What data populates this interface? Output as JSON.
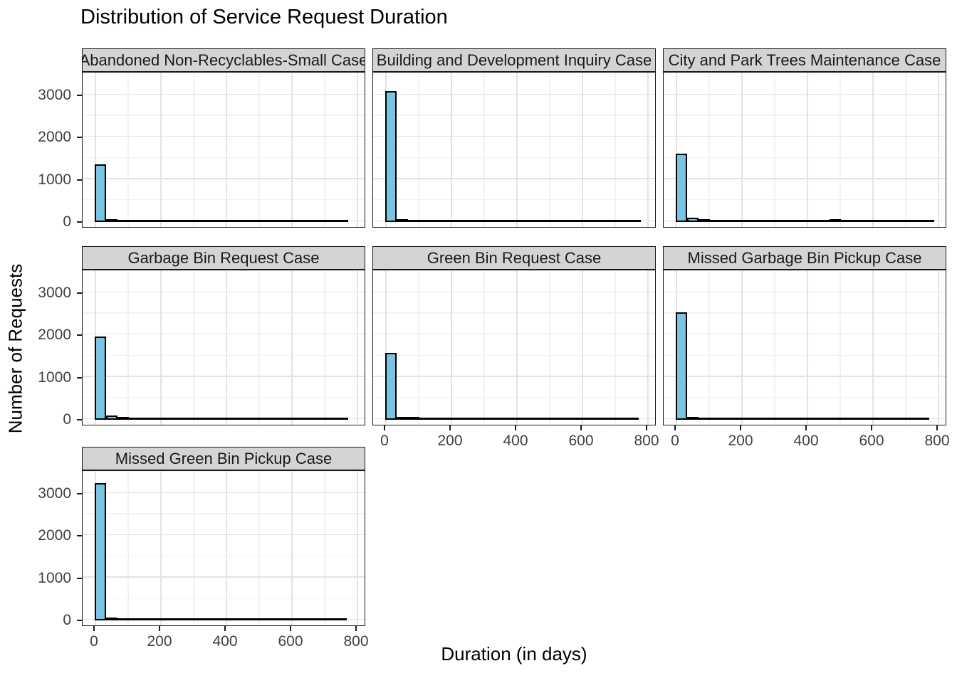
{
  "chart_data": {
    "type": "bar",
    "subtype": "faceted-histogram",
    "title": "Distribution of Service Request Duration",
    "xlabel": "Duration (in days)",
    "ylabel": "Number of Requests",
    "x_ticks": [
      0,
      200,
      400,
      600,
      800
    ],
    "x_minor": [
      100,
      300,
      500,
      700
    ],
    "y_ticks": [
      0,
      1000,
      2000,
      3000
    ],
    "y_minor": [
      500,
      1500,
      2500,
      3500
    ],
    "xlim": [
      -40,
      828
    ],
    "ylim": [
      0,
      3560
    ],
    "bin_width": 35,
    "grid": true,
    "legend": "none",
    "colors": {
      "bar_fill": "#78C4E2",
      "bar_stroke": "#000000",
      "strip_bg": "#D4D4D4",
      "panel_border": "#1a1a1a",
      "grid_major": "#E3E3E3",
      "grid_minor": "#F2F2F2",
      "tick_label": "#404040"
    },
    "facets": [
      {
        "label": "Abandoned Non-Recyclables-Small Case",
        "bars": [
          [
            0,
            1370
          ],
          [
            35,
            30
          ]
        ],
        "tail": {
          "from": 70,
          "to": 775,
          "count": 10
        }
      },
      {
        "label": "Building and Development Inquiry Case",
        "bars": [
          [
            0,
            3100
          ],
          [
            35,
            55
          ]
        ],
        "tail": {
          "from": 70,
          "to": 780,
          "count": 10
        }
      },
      {
        "label": "City and Park Trees Maintenance Case",
        "bars": [
          [
            0,
            1620
          ],
          [
            35,
            100
          ],
          [
            70,
            40
          ],
          [
            470,
            30
          ]
        ],
        "tail": {
          "from": 105,
          "to": 790,
          "count": 10
        }
      },
      {
        "label": "Garbage Bin Request Case",
        "bars": [
          [
            0,
            1980
          ],
          [
            35,
            95
          ],
          [
            70,
            45
          ]
        ],
        "tail": {
          "from": 105,
          "to": 775,
          "count": 10
        }
      },
      {
        "label": "Green Bin Request Case",
        "bars": [
          [
            0,
            1580
          ],
          [
            35,
            60
          ],
          [
            70,
            35
          ]
        ],
        "tail": {
          "from": 105,
          "to": 775,
          "count": 10
        }
      },
      {
        "label": "Missed Garbage Bin Pickup Case",
        "bars": [
          [
            0,
            2550
          ],
          [
            35,
            20
          ]
        ],
        "tail": {
          "from": 70,
          "to": 775,
          "count": 10
        }
      },
      {
        "label": "Missed Green Bin Pickup Case",
        "bars": [
          [
            0,
            3250
          ],
          [
            35,
            50
          ]
        ],
        "tail": {
          "from": 70,
          "to": 770,
          "count": 10
        }
      }
    ]
  }
}
